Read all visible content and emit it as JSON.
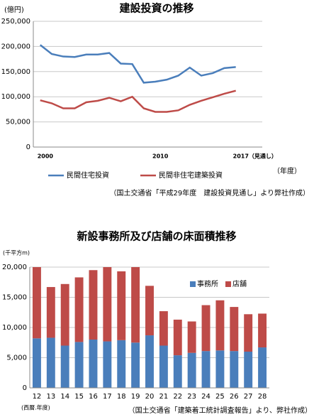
{
  "chart_data": [
    {
      "type": "line",
      "title": "建設投資の推移",
      "y_label": "(億円)",
      "x_label": "（年度）",
      "note": "（国土交通省「平成29年度　建設投資見通し」より弊社作成）",
      "x": [
        2000,
        2001,
        2002,
        2003,
        2004,
        2005,
        2006,
        2007,
        2008,
        2009,
        2010,
        2011,
        2012,
        2013,
        2014,
        2015,
        2016,
        2017
      ],
      "xlim": [
        1999.4,
        2019.3
      ],
      "xticks": [
        2000,
        2010,
        {
          "value": 2017,
          "label": "2017（見通し）"
        }
      ],
      "ylim": [
        0,
        250000
      ],
      "yticks": [
        {
          "value": 0,
          "label": "0"
        },
        {
          "value": 50000,
          "label": "50,000"
        },
        {
          "value": 100000,
          "label": "100,000"
        },
        {
          "value": 150000,
          "label": "150,000"
        },
        {
          "value": 200000,
          "label": "200,000"
        },
        {
          "value": 250000,
          "label": "250,000"
        }
      ],
      "grid": true,
      "legend": "bottom",
      "series": [
        {
          "name": "民間住宅投資",
          "color": "#4a7ebb",
          "values": [
            203000,
            185000,
            180000,
            179000,
            184000,
            184000,
            187000,
            166000,
            165000,
            128000,
            130000,
            134000,
            142000,
            158000,
            142000,
            147000,
            157000,
            159000
          ]
        },
        {
          "name": "民間非住宅建築投資",
          "color": "#be4b48",
          "values": [
            93000,
            87000,
            77000,
            77000,
            89000,
            92000,
            98000,
            91000,
            100000,
            77000,
            70000,
            70000,
            73000,
            84000,
            92000,
            99000,
            106000,
            112000
          ]
        }
      ]
    },
    {
      "type": "bar",
      "stacked": true,
      "title": "新設事務所及び店舗の床面積推移",
      "y_label": "(千平方m)",
      "x_label": "(西暦.年度)",
      "note": "（国土交通省「建築着工統計調査報告」より、弊社作成）",
      "categories": [
        "12",
        "13",
        "14",
        "15",
        "16",
        "17",
        "18",
        "19",
        "20",
        "21",
        "22",
        "23",
        "24",
        "25",
        "26",
        "27",
        "28"
      ],
      "ylim": [
        0,
        20000
      ],
      "yticks": [
        {
          "value": 0,
          "label": "0"
        },
        {
          "value": 5000,
          "label": "5,000"
        },
        {
          "value": 10000,
          "label": "10,000"
        },
        {
          "value": 15000,
          "label": "15,000"
        },
        {
          "value": 20000,
          "label": "20,000"
        }
      ],
      "grid": true,
      "legend": "upper right",
      "series": [
        {
          "name": "事務所",
          "color": "#4a7ebb",
          "values": [
            8200,
            8300,
            7000,
            7600,
            8000,
            7700,
            7900,
            7500,
            8700,
            7000,
            5400,
            5800,
            6100,
            6200,
            6100,
            6000,
            6700
          ]
        },
        {
          "name": "店舗",
          "color": "#be4b48",
          "values": [
            11800,
            8400,
            10200,
            10700,
            11500,
            12300,
            11400,
            12500,
            8200,
            5700,
            5900,
            5200,
            7600,
            8300,
            7300,
            6200,
            5600
          ]
        }
      ]
    }
  ]
}
